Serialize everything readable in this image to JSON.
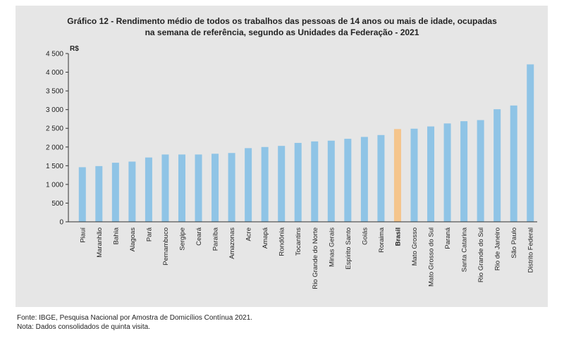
{
  "chart_data": {
    "type": "bar",
    "title_line1": "Gráfico 12 - Rendimento médio de todos os trabalhos das pessoas de 14 anos ou mais de idade, ocupadas",
    "title_line2": "na semana de referência, segundo as Unidades da Federação - 2021",
    "ylabel": "R$",
    "xlabel": "",
    "ylim": [
      0,
      4500
    ],
    "yticks": [
      0,
      500,
      1000,
      1500,
      2000,
      2500,
      3000,
      3500,
      4000,
      4500
    ],
    "ytick_labels": [
      "0",
      "500",
      "1 000",
      "1 500",
      "2 000",
      "2 500",
      "3 000",
      "3 500",
      "4 000",
      "4 500"
    ],
    "grid": false,
    "categories": [
      "Piauí",
      "Maranhão",
      "Bahia",
      "Alagoas",
      "Pará",
      "Pernambuco",
      "Sergipe",
      "Ceará",
      "Paraíba",
      "Amazonas",
      "Acre",
      "Amapá",
      "Rondônia",
      "Tocantins",
      "Rio Grande do Norte",
      "Minas Gerais",
      "Espírito Santo",
      "Goiás",
      "Roraima",
      "Brasil",
      "Mato Grosso",
      "Mato Grosso do Sul",
      "Paraná",
      "Santa Catarina",
      "Rio Grande do Sul",
      "Rio de Janeiro",
      "São Paulo",
      "Distrito Federal"
    ],
    "values": [
      1460,
      1490,
      1580,
      1610,
      1720,
      1800,
      1800,
      1800,
      1820,
      1840,
      1970,
      2000,
      2030,
      2110,
      2150,
      2170,
      2220,
      2270,
      2320,
      2480,
      2490,
      2550,
      2630,
      2690,
      2720,
      3010,
      3110,
      4210
    ],
    "highlight": "Brasil",
    "colors": {
      "bar": "#8fc4e6",
      "highlight": "#f5c58c",
      "axis": "#333333",
      "panel": "#e6e6e6"
    }
  },
  "footer": {
    "source": "Fonte: IBGE, Pesquisa Nacional por Amostra de Domicílios Contínua 2021.",
    "note": "Nota: Dados consolidados de quinta visita."
  }
}
